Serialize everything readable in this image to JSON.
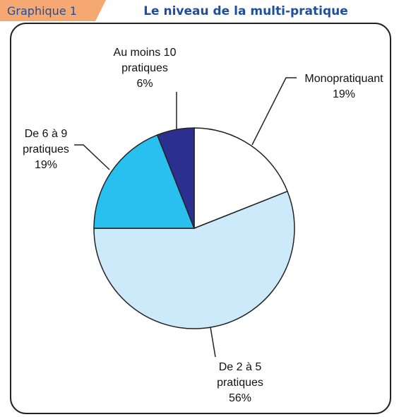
{
  "chart_data": {
    "type": "pie",
    "figure_label": "Graphique 1",
    "title": "Le niveau de la multi-pratique",
    "categories": [
      "Monopratiquant",
      "De 2 à 5 pratiques",
      "De 6 à 9 pratiques",
      "Au moins 10 pratiques"
    ],
    "values": [
      19,
      56,
      19,
      6
    ],
    "value_labels": [
      "19%",
      "56%",
      "19%",
      "6%"
    ],
    "colors": [
      "#ffffff",
      "#cdeafa",
      "#29c0f0",
      "#2b3090"
    ],
    "start_angle": 0,
    "direction": "clockwise"
  }
}
